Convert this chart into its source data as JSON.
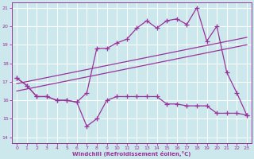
{
  "xlabel": "Windchill (Refroidissement éolien,°C)",
  "xlim": [
    -0.5,
    23.5
  ],
  "ylim": [
    13.7,
    21.3
  ],
  "yticks": [
    14,
    15,
    16,
    17,
    18,
    19,
    20,
    21
  ],
  "xticks": [
    0,
    1,
    2,
    3,
    4,
    5,
    6,
    7,
    8,
    9,
    10,
    11,
    12,
    13,
    14,
    15,
    16,
    17,
    18,
    19,
    20,
    21,
    22,
    23
  ],
  "bg_color": "#cce8ed",
  "line_color": "#993399",
  "grid_color": "#ffffff",
  "curve1_x": [
    0,
    1,
    2,
    3,
    4,
    5,
    6,
    7,
    8,
    9,
    10,
    11,
    12,
    13,
    14,
    15,
    16,
    17,
    18,
    19,
    20,
    21,
    22,
    23
  ],
  "curve1_y": [
    17.2,
    16.8,
    16.2,
    16.2,
    16.0,
    16.0,
    15.9,
    16.4,
    18.8,
    18.8,
    19.1,
    19.3,
    19.9,
    20.3,
    19.9,
    20.3,
    20.4,
    20.1,
    21.0,
    19.2,
    20.0,
    17.5,
    16.4,
    15.2
  ],
  "curve2_x": [
    0,
    1,
    2,
    3,
    4,
    5,
    6,
    7,
    8,
    9,
    10,
    11,
    12,
    13,
    14,
    15,
    16,
    17,
    18,
    19,
    20,
    21,
    22,
    23
  ],
  "curve2_y": [
    17.2,
    16.8,
    16.2,
    16.2,
    16.0,
    16.0,
    15.9,
    14.6,
    15.0,
    16.0,
    16.2,
    16.2,
    16.2,
    16.2,
    16.2,
    15.8,
    15.8,
    15.7,
    15.7,
    15.7,
    15.3,
    15.3,
    15.3,
    15.2
  ],
  "regline1_x": [
    0,
    23
  ],
  "regline1_y": [
    16.5,
    19.0
  ],
  "regline2_x": [
    0,
    23
  ],
  "regline2_y": [
    16.9,
    19.4
  ],
  "figsize": [
    3.2,
    2.0
  ],
  "dpi": 100
}
